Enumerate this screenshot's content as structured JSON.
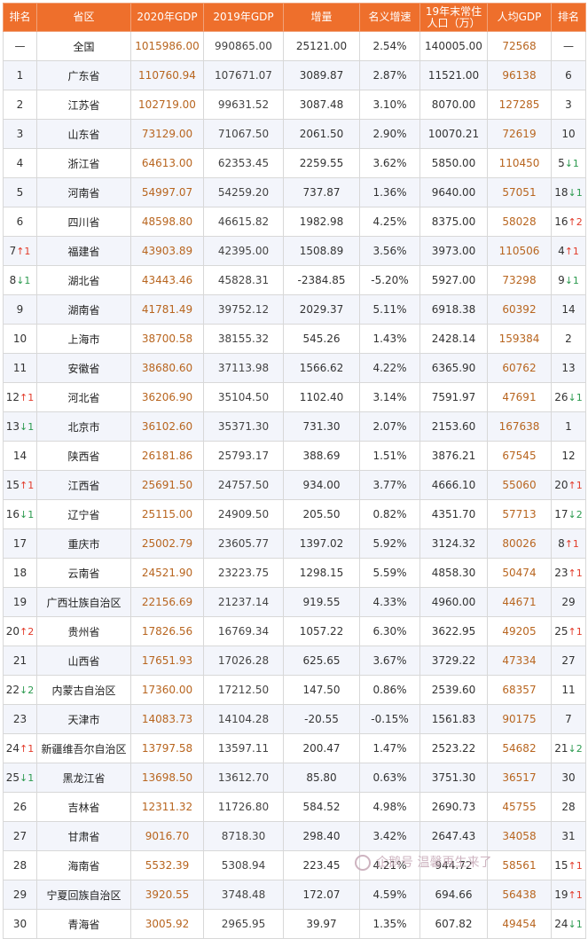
{
  "columns": [
    "排名",
    "省区",
    "2020年GDP",
    "2019年GDP",
    "增量",
    "名义增速",
    "19年末常住人口（万）",
    "人均GDP",
    "排名"
  ],
  "rows": [
    {
      "rank": "—",
      "arrow": "",
      "name": "全国",
      "gdp2020": "1015986.00",
      "gdp2019": "990865.00",
      "inc": "25121.00",
      "rate": "2.54%",
      "pop": "140005.00",
      "pc": "72568",
      "pcrank": "—",
      "pcarrow": ""
    },
    {
      "rank": "1",
      "arrow": "",
      "name": "广东省",
      "gdp2020": "110760.94",
      "gdp2019": "107671.07",
      "inc": "3089.87",
      "rate": "2.87%",
      "pop": "11521.00",
      "pc": "96138",
      "pcrank": "6",
      "pcarrow": ""
    },
    {
      "rank": "2",
      "arrow": "",
      "name": "江苏省",
      "gdp2020": "102719.00",
      "gdp2019": "99631.52",
      "inc": "3087.48",
      "rate": "3.10%",
      "pop": "8070.00",
      "pc": "127285",
      "pcrank": "3",
      "pcarrow": ""
    },
    {
      "rank": "3",
      "arrow": "",
      "name": "山东省",
      "gdp2020": "73129.00",
      "gdp2019": "71067.50",
      "inc": "2061.50",
      "rate": "2.90%",
      "pop": "10070.21",
      "pc": "72619",
      "pcrank": "10",
      "pcarrow": ""
    },
    {
      "rank": "4",
      "arrow": "",
      "name": "浙江省",
      "gdp2020": "64613.00",
      "gdp2019": "62353.45",
      "inc": "2259.55",
      "rate": "3.62%",
      "pop": "5850.00",
      "pc": "110450",
      "pcrank": "5",
      "pcarrow": "↓1"
    },
    {
      "rank": "5",
      "arrow": "",
      "name": "河南省",
      "gdp2020": "54997.07",
      "gdp2019": "54259.20",
      "inc": "737.87",
      "rate": "1.36%",
      "pop": "9640.00",
      "pc": "57051",
      "pcrank": "18",
      "pcarrow": "↓1"
    },
    {
      "rank": "6",
      "arrow": "",
      "name": "四川省",
      "gdp2020": "48598.80",
      "gdp2019": "46615.82",
      "inc": "1982.98",
      "rate": "4.25%",
      "pop": "8375.00",
      "pc": "58028",
      "pcrank": "16",
      "pcarrow": "↑2"
    },
    {
      "rank": "7",
      "arrow": "↑1",
      "name": "福建省",
      "gdp2020": "43903.89",
      "gdp2019": "42395.00",
      "inc": "1508.89",
      "rate": "3.56%",
      "pop": "3973.00",
      "pc": "110506",
      "pcrank": "4",
      "pcarrow": "↑1"
    },
    {
      "rank": "8",
      "arrow": "↓1",
      "name": "湖北省",
      "gdp2020": "43443.46",
      "gdp2019": "45828.31",
      "inc": "-2384.85",
      "rate": "-5.20%",
      "pop": "5927.00",
      "pc": "73298",
      "pcrank": "9",
      "pcarrow": "↓1"
    },
    {
      "rank": "9",
      "arrow": "",
      "name": "湖南省",
      "gdp2020": "41781.49",
      "gdp2019": "39752.12",
      "inc": "2029.37",
      "rate": "5.11%",
      "pop": "6918.38",
      "pc": "60392",
      "pcrank": "14",
      "pcarrow": ""
    },
    {
      "rank": "10",
      "arrow": "",
      "name": "上海市",
      "gdp2020": "38700.58",
      "gdp2019": "38155.32",
      "inc": "545.26",
      "rate": "1.43%",
      "pop": "2428.14",
      "pc": "159384",
      "pcrank": "2",
      "pcarrow": ""
    },
    {
      "rank": "11",
      "arrow": "",
      "name": "安徽省",
      "gdp2020": "38680.60",
      "gdp2019": "37113.98",
      "inc": "1566.62",
      "rate": "4.22%",
      "pop": "6365.90",
      "pc": "60762",
      "pcrank": "13",
      "pcarrow": ""
    },
    {
      "rank": "12",
      "arrow": "↑1",
      "name": "河北省",
      "gdp2020": "36206.90",
      "gdp2019": "35104.50",
      "inc": "1102.40",
      "rate": "3.14%",
      "pop": "7591.97",
      "pc": "47691",
      "pcrank": "26",
      "pcarrow": "↓1"
    },
    {
      "rank": "13",
      "arrow": "↓1",
      "name": "北京市",
      "gdp2020": "36102.60",
      "gdp2019": "35371.30",
      "inc": "731.30",
      "rate": "2.07%",
      "pop": "2153.60",
      "pc": "167638",
      "pcrank": "1",
      "pcarrow": ""
    },
    {
      "rank": "14",
      "arrow": "",
      "name": "陕西省",
      "gdp2020": "26181.86",
      "gdp2019": "25793.17",
      "inc": "388.69",
      "rate": "1.51%",
      "pop": "3876.21",
      "pc": "67545",
      "pcrank": "12",
      "pcarrow": ""
    },
    {
      "rank": "15",
      "arrow": "↑1",
      "name": "江西省",
      "gdp2020": "25691.50",
      "gdp2019": "24757.50",
      "inc": "934.00",
      "rate": "3.77%",
      "pop": "4666.10",
      "pc": "55060",
      "pcrank": "20",
      "pcarrow": "↑1"
    },
    {
      "rank": "16",
      "arrow": "↓1",
      "name": "辽宁省",
      "gdp2020": "25115.00",
      "gdp2019": "24909.50",
      "inc": "205.50",
      "rate": "0.82%",
      "pop": "4351.70",
      "pc": "57713",
      "pcrank": "17",
      "pcarrow": "↓2"
    },
    {
      "rank": "17",
      "arrow": "",
      "name": "重庆市",
      "gdp2020": "25002.79",
      "gdp2019": "23605.77",
      "inc": "1397.02",
      "rate": "5.92%",
      "pop": "3124.32",
      "pc": "80026",
      "pcrank": "8",
      "pcarrow": "↑1"
    },
    {
      "rank": "18",
      "arrow": "",
      "name": "云南省",
      "gdp2020": "24521.90",
      "gdp2019": "23223.75",
      "inc": "1298.15",
      "rate": "5.59%",
      "pop": "4858.30",
      "pc": "50474",
      "pcrank": "23",
      "pcarrow": "↑1"
    },
    {
      "rank": "19",
      "arrow": "",
      "name": "广西壮族自治区",
      "gdp2020": "22156.69",
      "gdp2019": "21237.14",
      "inc": "919.55",
      "rate": "4.33%",
      "pop": "4960.00",
      "pc": "44671",
      "pcrank": "29",
      "pcarrow": ""
    },
    {
      "rank": "20",
      "arrow": "↑2",
      "name": "贵州省",
      "gdp2020": "17826.56",
      "gdp2019": "16769.34",
      "inc": "1057.22",
      "rate": "6.30%",
      "pop": "3622.95",
      "pc": "49205",
      "pcrank": "25",
      "pcarrow": "↑1"
    },
    {
      "rank": "21",
      "arrow": "",
      "name": "山西省",
      "gdp2020": "17651.93",
      "gdp2019": "17026.28",
      "inc": "625.65",
      "rate": "3.67%",
      "pop": "3729.22",
      "pc": "47334",
      "pcrank": "27",
      "pcarrow": ""
    },
    {
      "rank": "22",
      "arrow": "↓2",
      "name": "内蒙古自治区",
      "gdp2020": "17360.00",
      "gdp2019": "17212.50",
      "inc": "147.50",
      "rate": "0.86%",
      "pop": "2539.60",
      "pc": "68357",
      "pcrank": "11",
      "pcarrow": ""
    },
    {
      "rank": "23",
      "arrow": "",
      "name": "天津市",
      "gdp2020": "14083.73",
      "gdp2019": "14104.28",
      "inc": "-20.55",
      "rate": "-0.15%",
      "pop": "1561.83",
      "pc": "90175",
      "pcrank": "7",
      "pcarrow": ""
    },
    {
      "rank": "24",
      "arrow": "↑1",
      "name": "新疆维吾尔自治区",
      "gdp2020": "13797.58",
      "gdp2019": "13597.11",
      "inc": "200.47",
      "rate": "1.47%",
      "pop": "2523.22",
      "pc": "54682",
      "pcrank": "21",
      "pcarrow": "↓2"
    },
    {
      "rank": "25",
      "arrow": "↓1",
      "name": "黑龙江省",
      "gdp2020": "13698.50",
      "gdp2019": "13612.70",
      "inc": "85.80",
      "rate": "0.63%",
      "pop": "3751.30",
      "pc": "36517",
      "pcrank": "30",
      "pcarrow": ""
    },
    {
      "rank": "26",
      "arrow": "",
      "name": "吉林省",
      "gdp2020": "12311.32",
      "gdp2019": "11726.80",
      "inc": "584.52",
      "rate": "4.98%",
      "pop": "2690.73",
      "pc": "45755",
      "pcrank": "28",
      "pcarrow": ""
    },
    {
      "rank": "27",
      "arrow": "",
      "name": "甘肃省",
      "gdp2020": "9016.70",
      "gdp2019": "8718.30",
      "inc": "298.40",
      "rate": "3.42%",
      "pop": "2647.43",
      "pc": "34058",
      "pcrank": "31",
      "pcarrow": ""
    },
    {
      "rank": "28",
      "arrow": "",
      "name": "海南省",
      "gdp2020": "5532.39",
      "gdp2019": "5308.94",
      "inc": "223.45",
      "rate": "4.21%",
      "pop": "944.72",
      "pc": "58561",
      "pcrank": "15",
      "pcarrow": "↑1"
    },
    {
      "rank": "29",
      "arrow": "",
      "name": "宁夏回族自治区",
      "gdp2020": "3920.55",
      "gdp2019": "3748.48",
      "inc": "172.07",
      "rate": "4.59%",
      "pop": "694.66",
      "pc": "56438",
      "pcrank": "19",
      "pcarrow": "↑1"
    },
    {
      "rank": "30",
      "arrow": "",
      "name": "青海省",
      "gdp2020": "3005.92",
      "gdp2019": "2965.95",
      "inc": "39.97",
      "rate": "1.35%",
      "pop": "607.82",
      "pc": "49454",
      "pcrank": "24",
      "pcarrow": "↓1"
    }
  ],
  "watermark": "企鹅号 温馨再生来了"
}
